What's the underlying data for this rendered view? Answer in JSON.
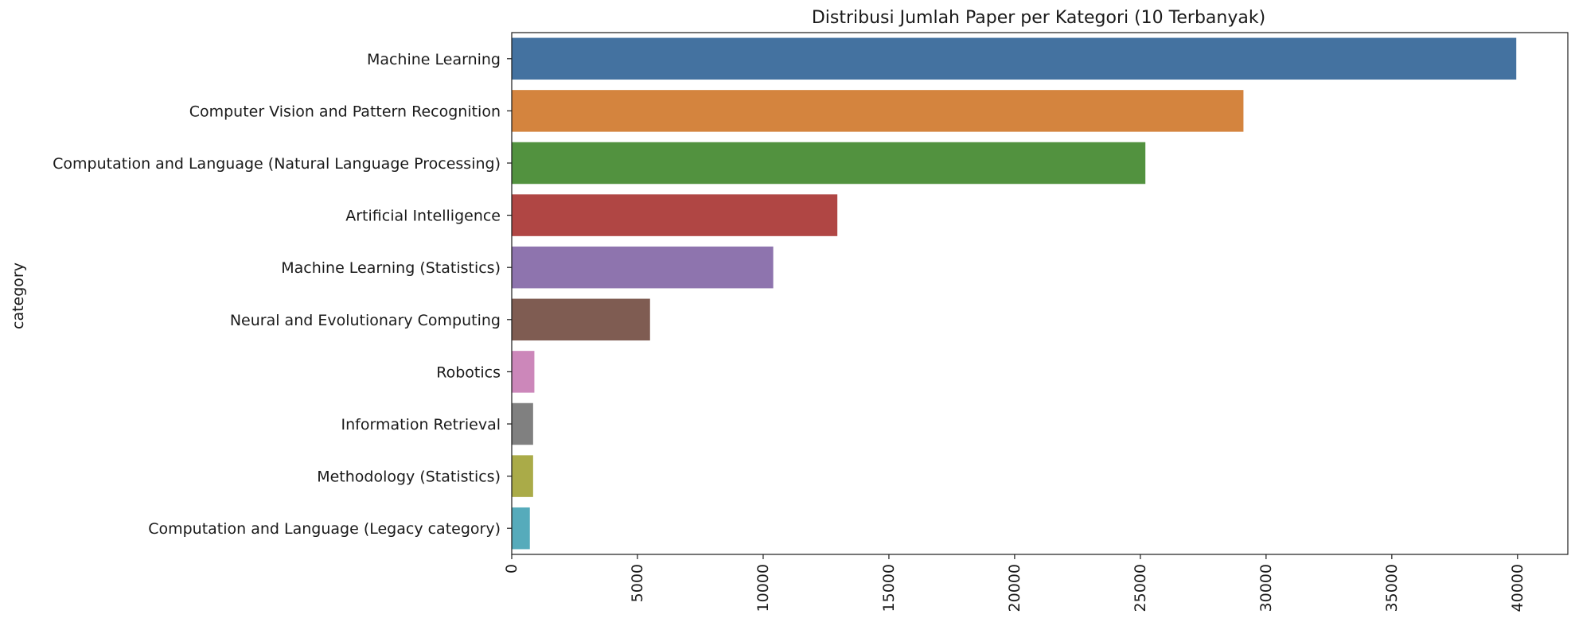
{
  "chart_data": {
    "type": "bar",
    "orientation": "horizontal",
    "title": "Distribusi Jumlah Paper per Kategori (10 Terbanyak)",
    "xlabel": "",
    "ylabel": "category",
    "xlim": [
      0,
      42000
    ],
    "x_ticks": [
      0,
      5000,
      10000,
      15000,
      20000,
      25000,
      30000,
      35000,
      40000
    ],
    "x_tick_labels": [
      "0",
      "5000",
      "10000",
      "15000",
      "20000",
      "25000",
      "30000",
      "35000",
      "40000"
    ],
    "categories": [
      "Machine Learning",
      "Computer Vision and Pattern Recognition",
      "Computation and Language (Natural Language Processing)",
      "Artificial Intelligence",
      "Machine Learning (Statistics)",
      "Neural and Evolutionary Computing",
      "Robotics",
      "Information Retrieval",
      "Methodology (Statistics)",
      "Computation and Language (Legacy category)"
    ],
    "values": [
      39950,
      29100,
      25200,
      12950,
      10400,
      5500,
      900,
      850,
      850,
      720
    ],
    "colors": [
      "#4472a0",
      "#d4843e",
      "#52923f",
      "#b04644",
      "#8e74ae",
      "#7f5c52",
      "#cc87ba",
      "#808080",
      "#aaab48",
      "#56abbb"
    ],
    "grid": false,
    "legend": "none"
  }
}
